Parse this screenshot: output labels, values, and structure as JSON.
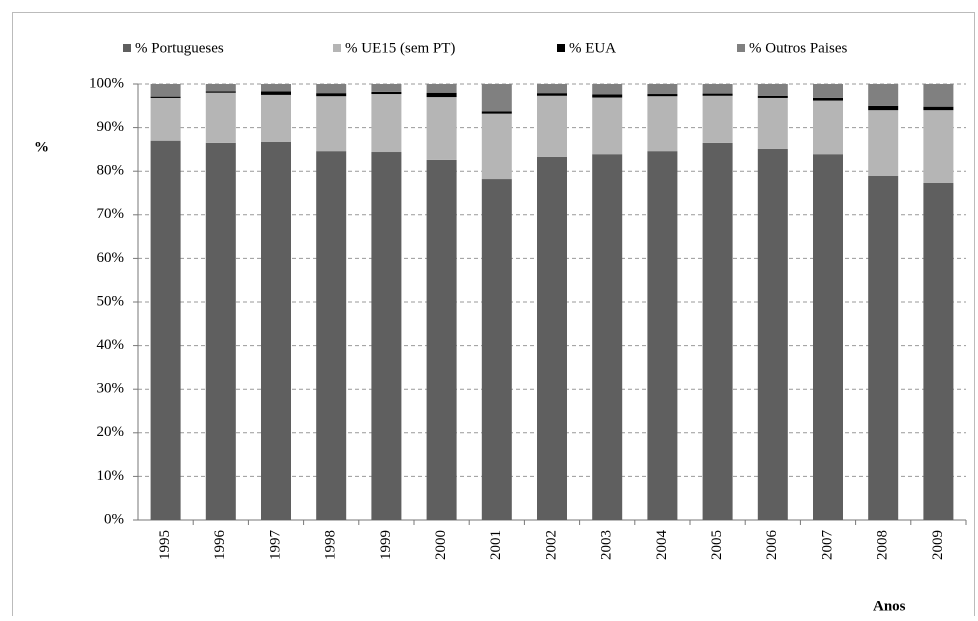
{
  "chart_data": {
    "type": "stacked_bar",
    "y_label": "%",
    "x_label": "Anos",
    "categories": [
      "1995",
      "1996",
      "1997",
      "1998",
      "1999",
      "2000",
      "2001",
      "2002",
      "2003",
      "2004",
      "2005",
      "2006",
      "2007",
      "2008",
      "2009"
    ],
    "series": [
      {
        "name": "% Portugueses",
        "color": "#5f5f5f",
        "values": [
          87,
          86.5,
          86.7,
          84.6,
          84.4,
          82.6,
          78.2,
          83.3,
          83.9,
          84.6,
          86.5,
          85.1,
          83.9,
          78.9,
          77.3
        ]
      },
      {
        "name": "% UE15 (sem PT)",
        "color": "#b5b5b5",
        "values": [
          9.8,
          11.5,
          10.8,
          12.6,
          13.3,
          14.4,
          15.0,
          14.0,
          13.0,
          12.6,
          10.8,
          11.7,
          12.3,
          15.1,
          16.7
        ]
      },
      {
        "name": "% EUA",
        "color": "#000000",
        "values": [
          0.3,
          0.3,
          0.8,
          0.7,
          0.5,
          1.0,
          0.5,
          0.6,
          0.7,
          0.5,
          0.5,
          0.5,
          0.6,
          1.0,
          0.8
        ]
      },
      {
        "name": "% Outros Paises",
        "color": "#808080",
        "values": [
          2.9,
          1.7,
          1.7,
          2.1,
          1.8,
          2.0,
          6.3,
          2.1,
          2.4,
          2.3,
          2.2,
          2.7,
          3.2,
          5.0,
          5.2
        ]
      }
    ],
    "ylim": [
      0,
      100
    ],
    "yticks": [
      {
        "value": 0,
        "label": "0%"
      },
      {
        "value": 10,
        "label": "10%"
      },
      {
        "value": 20,
        "label": "20%"
      },
      {
        "value": 30,
        "label": "30%"
      },
      {
        "value": 40,
        "label": "40%"
      },
      {
        "value": 50,
        "label": "50%"
      },
      {
        "value": 60,
        "label": "60%"
      },
      {
        "value": 70,
        "label": "70%"
      },
      {
        "value": 80,
        "label": "80%"
      },
      {
        "value": 90,
        "label": "90%"
      },
      {
        "value": 100,
        "label": "100%"
      }
    ],
    "grid": true
  }
}
